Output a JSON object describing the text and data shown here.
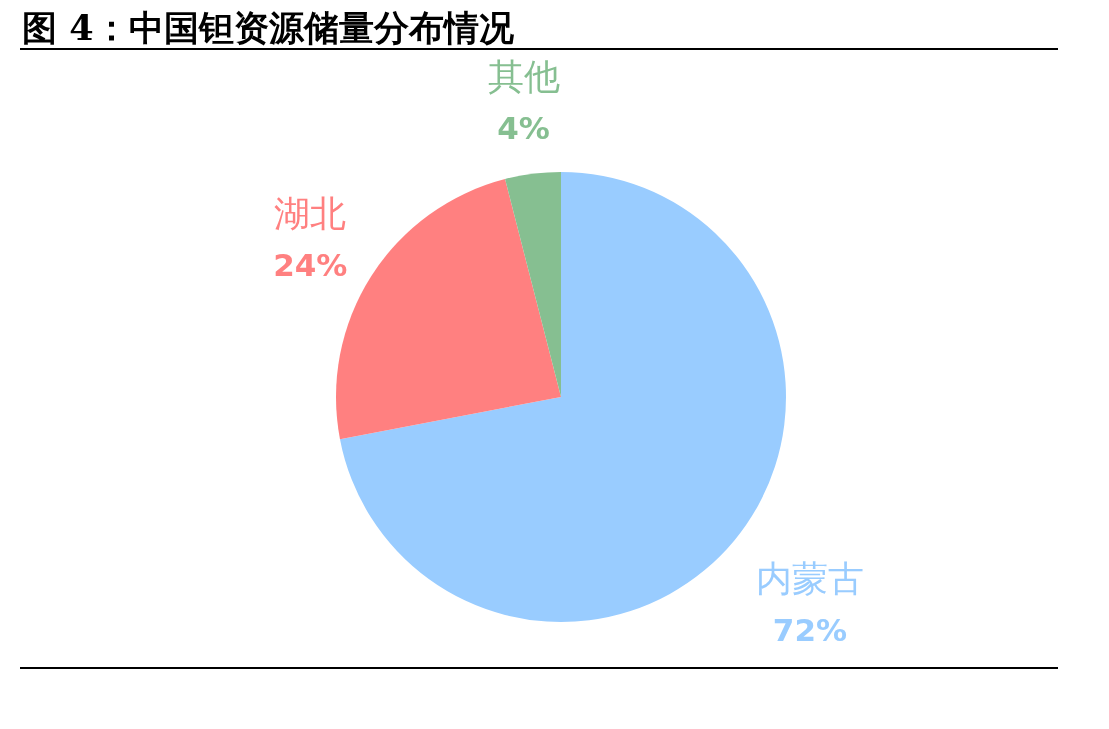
{
  "chart_data": {
    "type": "pie",
    "title": "图 4：中国钽资源储量分布情况",
    "categories": [
      "内蒙古",
      "湖北",
      "其他"
    ],
    "values": [
      72,
      24,
      4
    ],
    "colors": [
      "#99ccff",
      "#ff8080",
      "#86bf91"
    ],
    "value_labels": [
      "72%",
      "24%",
      "4%"
    ]
  }
}
